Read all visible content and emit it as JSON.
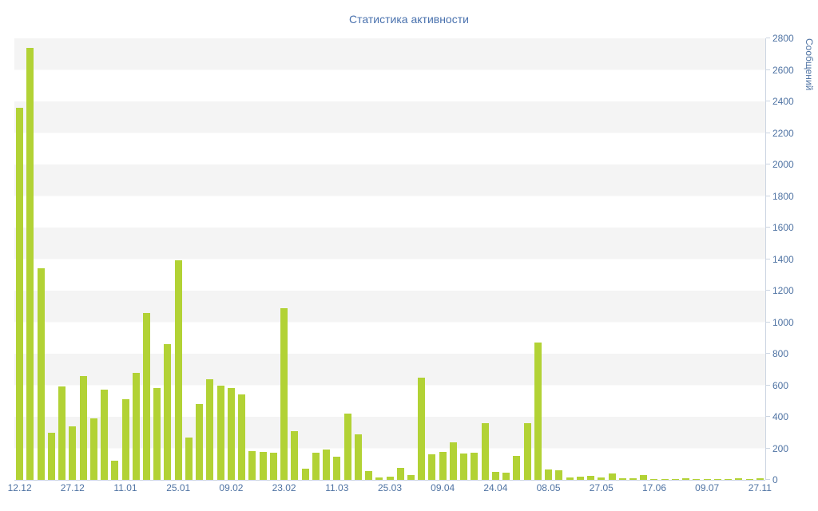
{
  "chart_data": {
    "type": "bar",
    "title": "Статистика активности",
    "ylabel": "Сообщений",
    "xlabel": "",
    "ylim": [
      0,
      2800
    ],
    "grid": "horizontal-bands",
    "legend": "none",
    "bar_color": "#b2d235",
    "band_color": "#f4f4f4",
    "axis_text_color": "#4f73a3",
    "title_color": "#4a72ae",
    "y_ticks": [
      0,
      200,
      400,
      600,
      800,
      1000,
      1200,
      1400,
      1600,
      1800,
      2000,
      2200,
      2400,
      2600,
      2800
    ],
    "x_tick_labels": [
      "12.12",
      "27.12",
      "11.01",
      "25.01",
      "09.02",
      "23.02",
      "11.03",
      "25.03",
      "09.04",
      "24.04",
      "08.05",
      "27.05",
      "17.06",
      "09.07",
      "27.11"
    ],
    "x_tick_every": 5,
    "values": [
      2360,
      2740,
      1340,
      300,
      590,
      340,
      660,
      390,
      570,
      120,
      510,
      680,
      1060,
      580,
      860,
      1390,
      270,
      480,
      640,
      600,
      580,
      540,
      180,
      175,
      170,
      1090,
      310,
      70,
      170,
      195,
      145,
      420,
      290,
      55,
      15,
      20,
      75,
      30,
      650,
      160,
      175,
      240,
      165,
      170,
      360,
      50,
      45,
      150,
      360,
      870,
      65,
      60,
      15,
      20,
      25,
      15,
      40,
      10,
      8,
      30,
      5,
      5,
      5,
      8,
      5,
      5,
      5,
      5,
      12,
      5,
      10
    ]
  }
}
